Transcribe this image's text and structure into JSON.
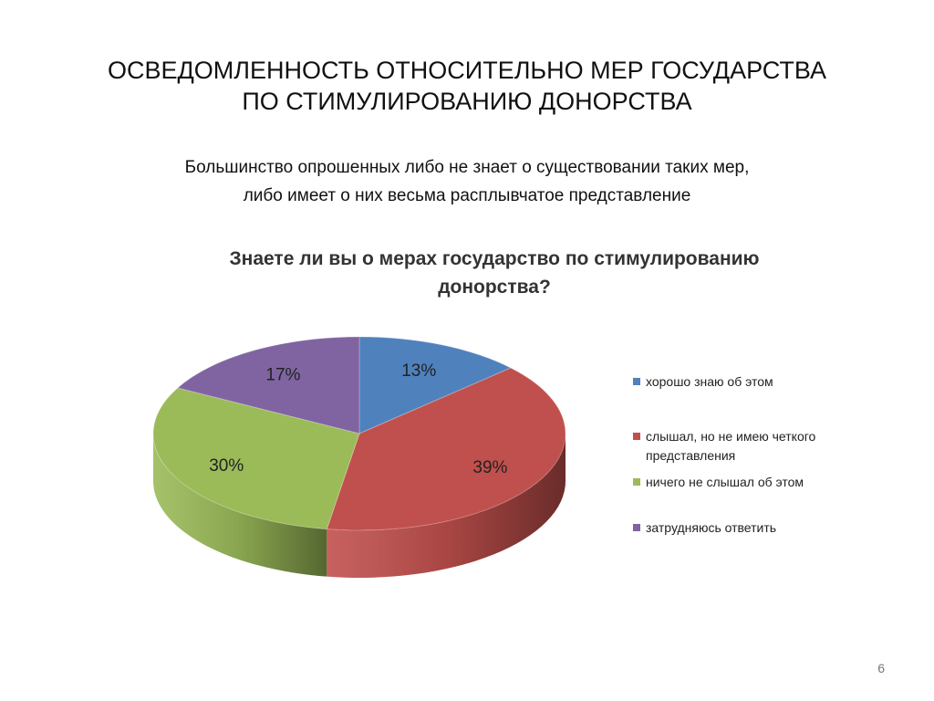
{
  "slide": {
    "title_lines": [
      "ОСВЕДОМЛЕННОСТЬ ОТНОСИТЕЛЬНО МЕР ГОСУДАРСТВА",
      "ПО СТИМУЛИРОВАНИЮ ДОНОРСТВА"
    ],
    "subtitle_lines": [
      "Большинство опрошенных либо не знает о существовании таких мер,",
      "либо имеет о них весьма расплывчатое представление"
    ],
    "page_number": "6"
  },
  "chart_data": {
    "type": "pie",
    "title_lines": [
      "Знаете ли вы о мерах государство по стимулированию",
      "донорства?"
    ],
    "categories": [
      "хорошо знаю об этом",
      "слышал, но не имею четкого представления",
      "ничего не слышал об этом",
      "затрудняюсь ответить"
    ],
    "values": [
      13,
      39,
      30,
      17
    ],
    "value_labels": [
      "13%",
      "39%",
      "30%",
      "17%"
    ],
    "colors": [
      "#4F81BD",
      "#C0504D",
      "#9BBB59",
      "#8064A2"
    ],
    "legend_placement": "right",
    "style": "3d"
  }
}
